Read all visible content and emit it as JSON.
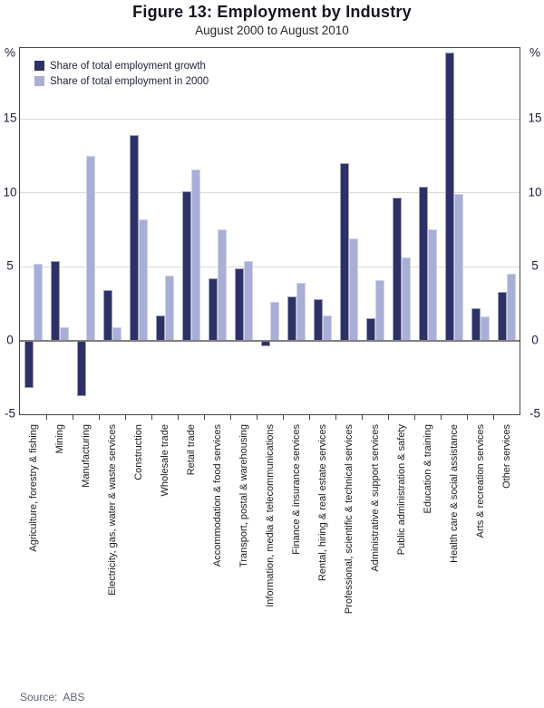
{
  "figure": {
    "title": "Figure 13: Employment by Industry",
    "subtitle": "August 2000 to August 2010",
    "source": "Source:  ABS",
    "unit_symbol": "%"
  },
  "chart_data": {
    "type": "bar",
    "title": "Figure 13: Employment by Industry",
    "subtitle": "August 2000 to August 2010",
    "categories": [
      "Agriculture, forestry & fishing",
      "Mining",
      "Manufacturing",
      "Electricity, gas, water & waste services",
      "Construction",
      "Wholesale trade",
      "Retail trade",
      "Accommodation & food services",
      "Transport, postal & warehousing",
      "Information, media & telecommunications",
      "Finance & insurance services",
      "Rental, hiring & real estate services",
      "Professional, scientific & technical services",
      "Administrative & support services",
      "Public administration & safety",
      "Education & training",
      "Health care & social assistance",
      "Arts & recreation services",
      "Other services"
    ],
    "series": [
      {
        "name": "Share of total employment growth",
        "color": "#2e3166",
        "values": [
          -3.2,
          5.4,
          -3.8,
          3.4,
          13.9,
          1.7,
          10.1,
          4.2,
          4.9,
          -0.4,
          3.0,
          2.8,
          12.0,
          1.5,
          9.7,
          10.4,
          19.5,
          2.2,
          3.3
        ]
      },
      {
        "name": "Share of total employment in 2000",
        "color": "#a9aed6",
        "values": [
          5.2,
          0.9,
          12.5,
          0.9,
          8.2,
          4.4,
          11.6,
          7.5,
          5.4,
          2.6,
          3.9,
          1.7,
          6.9,
          4.1,
          5.6,
          7.5,
          9.9,
          1.6,
          4.5
        ]
      }
    ],
    "ylabel": "%",
    "yticks": [
      -5,
      0,
      5,
      10,
      15
    ],
    "gridlines_at": [
      5,
      10,
      15
    ],
    "ylim": [
      -5,
      19.8
    ],
    "grid": true,
    "legend_position": "top-left inside plot",
    "axis_sides": "both left and right",
    "source": "Source:  ABS"
  }
}
